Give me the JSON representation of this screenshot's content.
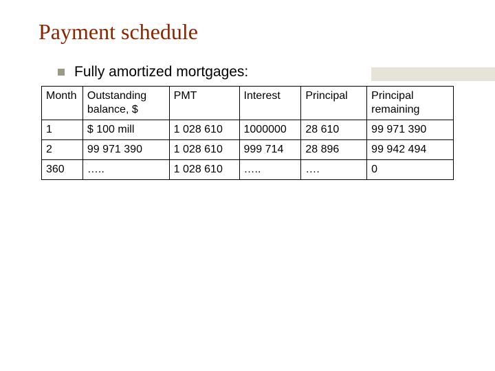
{
  "title": "Payment schedule",
  "title_color": "#8b2500",
  "title_fontsize": 32,
  "bullet": {
    "text": "Fully amortized mortgages:",
    "marker_color": "#9a9a86",
    "text_color": "#000000",
    "fontsize": 21
  },
  "accent_strip_color": "#e6e4d8",
  "background_color": "#ffffff",
  "table": {
    "type": "table",
    "border_color": "#000000",
    "cell_fontsize": 16,
    "columns": [
      {
        "label": "Month",
        "width_pct": 10
      },
      {
        "label": "Outstanding balance, $",
        "width_pct": 21
      },
      {
        "label": "PMT",
        "width_pct": 17
      },
      {
        "label": "Interest",
        "width_pct": 15
      },
      {
        "label": "Principal",
        "width_pct": 16
      },
      {
        "label": "Principal remaining",
        "width_pct": 21
      }
    ],
    "rows": [
      [
        "1",
        "$ 100 mill",
        "1 028 610",
        "1000000",
        "28 610",
        "99 971 390"
      ],
      [
        "2",
        "99 971 390",
        "1 028 610",
        "999 714",
        "28 896",
        "99 942 494"
      ],
      [
        "360",
        "…..",
        "1 028 610",
        "…..",
        "….",
        "0"
      ]
    ]
  }
}
